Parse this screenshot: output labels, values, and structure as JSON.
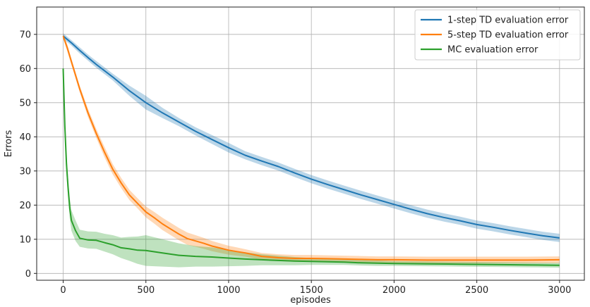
{
  "chart_data": {
    "type": "line",
    "title": "",
    "xlabel": "episodes",
    "ylabel": "Errors",
    "xlim": [
      -160,
      3150
    ],
    "ylim": [
      -2,
      78
    ],
    "xticks": [
      0,
      500,
      1000,
      1500,
      2000,
      2500,
      3000
    ],
    "yticks": [
      0,
      10,
      20,
      30,
      40,
      50,
      60,
      70
    ],
    "grid": true,
    "legend_position": "top-right",
    "series": [
      {
        "name": "1-step TD evaluation error",
        "color": "#1f77b4",
        "x": [
          0,
          50,
          100,
          150,
          200,
          300,
          400,
          500,
          600,
          700,
          800,
          900,
          1000,
          1100,
          1200,
          1300,
          1400,
          1500,
          1600,
          1700,
          1800,
          1900,
          2000,
          2100,
          2200,
          2300,
          2400,
          2500,
          2600,
          2700,
          2800,
          2900,
          3000
        ],
        "y": [
          69.5,
          67.5,
          65.3,
          63.2,
          61.2,
          57.5,
          53.5,
          50.0,
          47.0,
          44.3,
          41.6,
          39.2,
          36.8,
          34.6,
          32.9,
          31.3,
          29.4,
          27.6,
          26.0,
          24.5,
          23.0,
          21.6,
          20.2,
          18.8,
          17.5,
          16.4,
          15.4,
          14.3,
          13.5,
          12.6,
          11.8,
          11.0,
          10.4
        ],
        "band": [
          0.8,
          0.8,
          0.9,
          0.9,
          1.0,
          1.0,
          1.5,
          2.0,
          1.5,
          1.2,
          1.2,
          1.3,
          1.4,
          1.2,
          1.2,
          1.2,
          1.2,
          1.2,
          1.2,
          1.2,
          1.2,
          1.2,
          1.2,
          1.2,
          1.2,
          1.2,
          1.2,
          1.2,
          1.2,
          1.2,
          1.2,
          1.2,
          1.2
        ]
      },
      {
        "name": "5-step TD evaluation error",
        "color": "#ff7f0e",
        "x": [
          0,
          25,
          50,
          75,
          100,
          150,
          200,
          250,
          300,
          350,
          400,
          450,
          500,
          550,
          600,
          650,
          700,
          750,
          800,
          850,
          900,
          950,
          1000,
          1050,
          1100,
          1200,
          1300,
          1400,
          1500,
          1600,
          1700,
          1800,
          1900,
          2000,
          2200,
          2400,
          2600,
          2800,
          3000
        ],
        "y": [
          69.5,
          66.0,
          62.0,
          58.0,
          54.0,
          47.0,
          41.0,
          35.5,
          30.5,
          26.5,
          23.0,
          20.5,
          18.0,
          16.3,
          14.5,
          13.0,
          11.5,
          10.2,
          9.5,
          8.8,
          8.0,
          7.4,
          6.8,
          6.4,
          6.0,
          5.0,
          4.6,
          4.4,
          4.4,
          4.3,
          4.2,
          4.1,
          4.0,
          4.0,
          3.9,
          3.9,
          3.9,
          3.9,
          4.0
        ],
        "band": [
          0.8,
          1.0,
          1.0,
          1.0,
          1.0,
          1.2,
          1.3,
          1.5,
          1.5,
          1.5,
          1.5,
          1.5,
          1.6,
          1.7,
          1.8,
          1.8,
          1.8,
          1.8,
          1.7,
          1.6,
          1.5,
          1.4,
          1.3,
          1.2,
          1.1,
          1.0,
          1.0,
          1.0,
          1.0,
          1.0,
          1.0,
          1.0,
          1.0,
          1.0,
          1.0,
          1.0,
          1.0,
          1.0,
          1.0
        ]
      },
      {
        "name": "MC evaluation error",
        "color": "#2ca02c",
        "x": [
          0,
          10,
          20,
          30,
          40,
          50,
          75,
          100,
          150,
          200,
          250,
          300,
          350,
          400,
          450,
          500,
          600,
          700,
          800,
          900,
          1000,
          1100,
          1200,
          1300,
          1400,
          1500,
          1600,
          1700,
          1800,
          1900,
          2000,
          2200,
          2400,
          2600,
          2800,
          3000
        ],
        "y": [
          60.0,
          43.0,
          32.0,
          25.0,
          19.0,
          15.5,
          12.5,
          10.3,
          9.8,
          9.7,
          9.0,
          8.4,
          7.5,
          7.2,
          6.8,
          6.7,
          6.0,
          5.3,
          5.0,
          4.8,
          4.5,
          4.2,
          4.0,
          3.8,
          3.6,
          3.5,
          3.4,
          3.3,
          3.1,
          3.0,
          2.9,
          2.8,
          2.7,
          2.6,
          2.5,
          2.4
        ],
        "band": [
          1.0,
          3.0,
          3.0,
          3.0,
          3.0,
          3.0,
          3.0,
          2.5,
          2.5,
          2.5,
          2.6,
          2.8,
          3.0,
          3.5,
          4.0,
          4.5,
          4.0,
          3.5,
          3.0,
          2.8,
          2.4,
          2.0,
          1.6,
          1.4,
          1.2,
          1.0,
          0.9,
          0.8,
          0.8,
          0.8,
          0.7,
          0.7,
          0.7,
          0.7,
          0.7,
          0.7
        ]
      }
    ]
  }
}
